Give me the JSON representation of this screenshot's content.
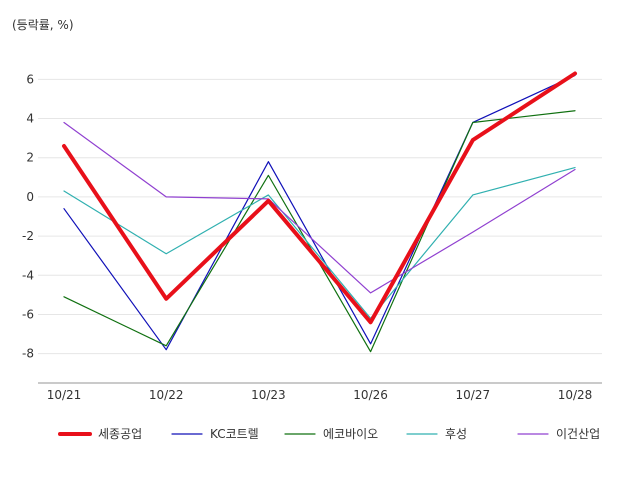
{
  "chart_data": {
    "type": "line",
    "unit_label": "(등락률, %)",
    "categories": [
      "10/21",
      "10/22",
      "10/23",
      "10/26",
      "10/27",
      "10/28"
    ],
    "ylim": [
      -9.5,
      7.5
    ],
    "yticks": [
      6,
      4,
      2,
      0,
      -2,
      -4,
      -6,
      -8
    ],
    "grid": true,
    "legend_position": "bottom",
    "series": [
      {
        "name": "세종공업",
        "color": "#e8101a",
        "values": [
          2.6,
          -5.2,
          -0.2,
          -6.4,
          2.9,
          6.3
        ]
      },
      {
        "name": "KC코트렐",
        "color": "#1010b8",
        "values": [
          -0.6,
          -7.8,
          1.8,
          -7.5,
          3.8,
          6.2
        ]
      },
      {
        "name": "에코바이오",
        "color": "#107010",
        "values": [
          -5.1,
          -7.6,
          1.1,
          -7.9,
          3.8,
          4.4
        ]
      },
      {
        "name": "후성",
        "color": "#30b0b0",
        "values": [
          0.3,
          -2.9,
          0.1,
          -6.2,
          0.1,
          1.5
        ]
      },
      {
        "name": "이건산업",
        "color": "#9040d0",
        "values": [
          3.8,
          0.0,
          -0.1,
          -4.9,
          -1.8,
          1.4
        ]
      }
    ]
  }
}
